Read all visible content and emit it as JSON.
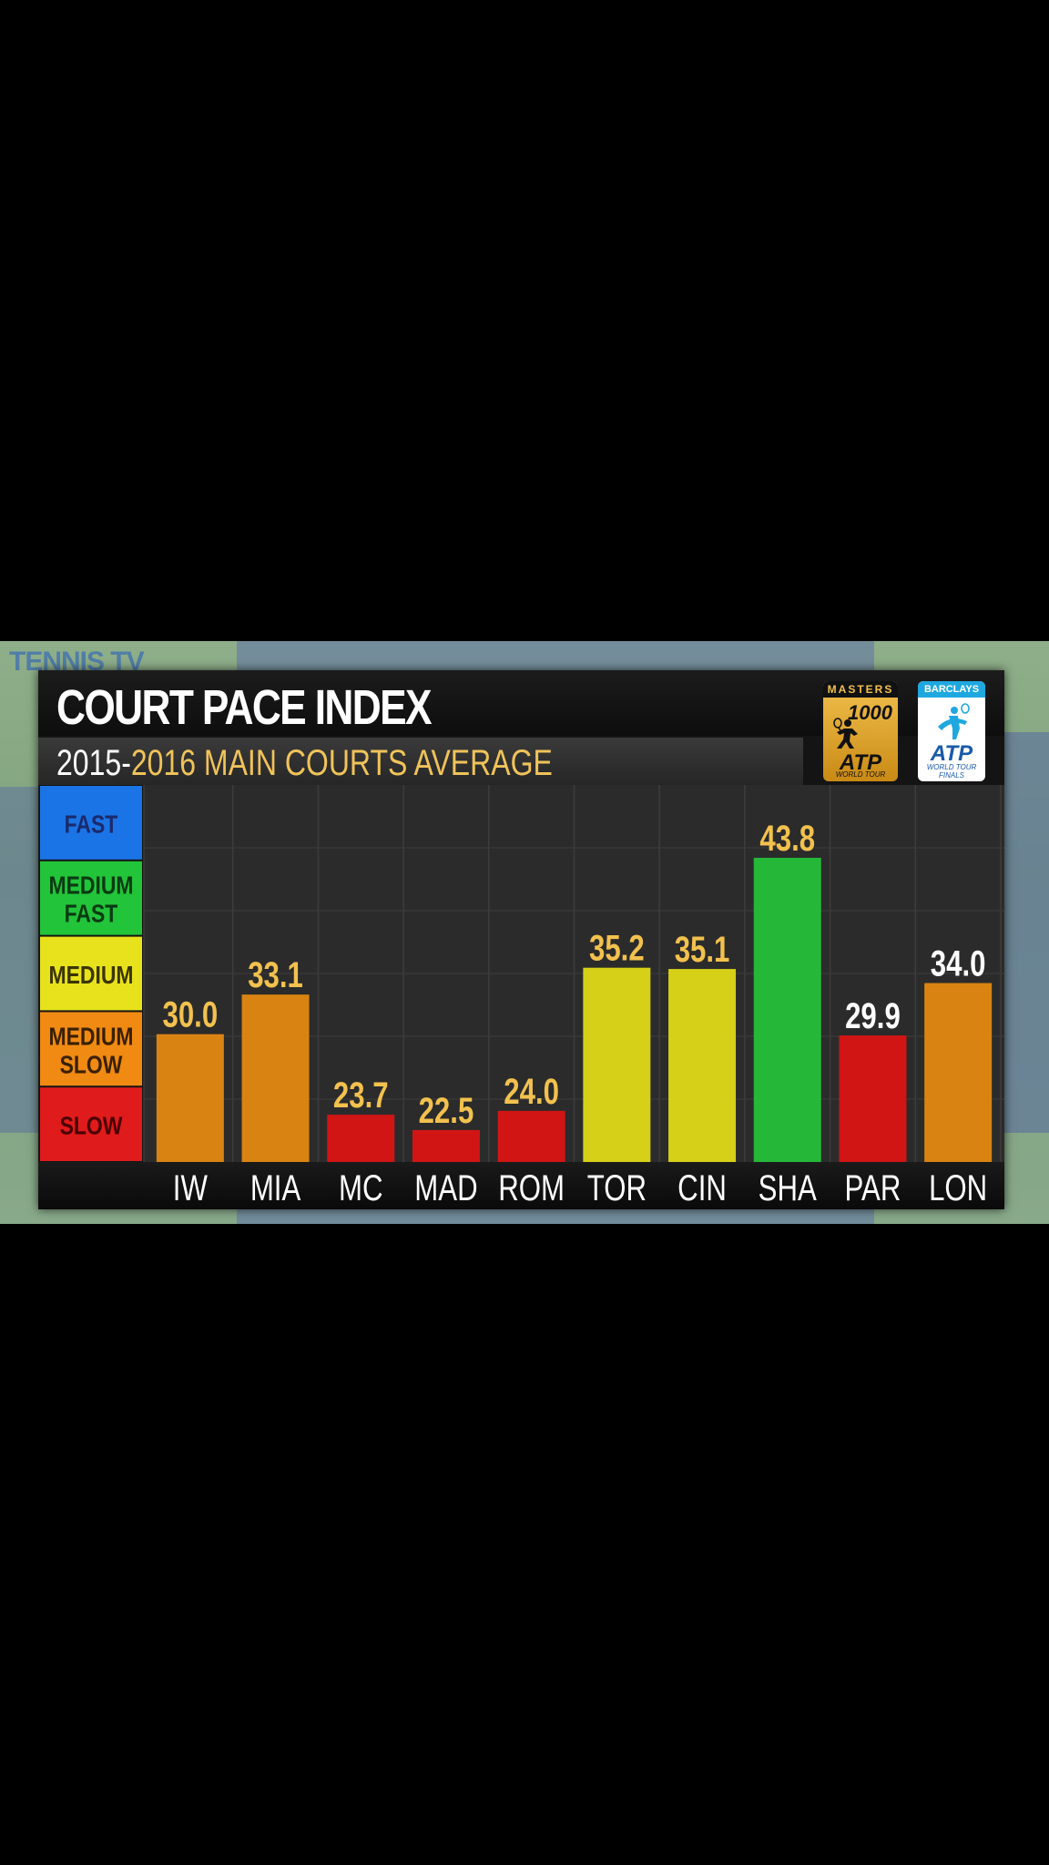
{
  "watermark": "TENNIS TV",
  "title": "COURT PACE INDEX",
  "subtitle_years_start": "2015-",
  "subtitle_rest": "2016 MAIN COURTS AVERAGE",
  "logos": {
    "masters": {
      "band": "MASTERS",
      "number": "1000",
      "brand": "ATP",
      "tagline": "WORLD TOUR"
    },
    "finals": {
      "band": "BARCLAYS",
      "brand": "ATP",
      "tagline_1": "WORLD TOUR",
      "tagline_2": "FINALS"
    }
  },
  "pace_bands": [
    {
      "lines": [
        "FAST"
      ],
      "color": "#1a74e6",
      "text_color": "#1b2a6b"
    },
    {
      "lines": [
        "MEDIUM",
        "FAST"
      ],
      "color": "#22c43a",
      "text_color": "#0a3a12"
    },
    {
      "lines": [
        "MEDIUM"
      ],
      "color": "#e8e21c",
      "text_color": "#3a3500"
    },
    {
      "lines": [
        "MEDIUM",
        "SLOW"
      ],
      "color": "#f08a12",
      "text_color": "#3a2000"
    },
    {
      "lines": [
        "SLOW"
      ],
      "color": "#e01b1b",
      "text_color": "#4a0000"
    }
  ],
  "chart_data": {
    "type": "bar",
    "title": "COURT PACE INDEX",
    "subtitle": "2015-2016 MAIN COURTS AVERAGE",
    "categories": [
      "IW",
      "MIA",
      "MC",
      "MAD",
      "ROM",
      "TOR",
      "CIN",
      "SHA",
      "PAR",
      "LON"
    ],
    "values": [
      30.0,
      33.1,
      23.7,
      22.5,
      24.0,
      35.2,
      35.1,
      43.8,
      29.9,
      34.0
    ],
    "value_labels": [
      "30.0",
      "33.1",
      "23.7",
      "22.5",
      "24.0",
      "35.2",
      "35.1",
      "43.8",
      "29.9",
      "34.0"
    ],
    "bar_colors": [
      "#d98412",
      "#d98412",
      "#d11515",
      "#d11515",
      "#d11515",
      "#d6d018",
      "#d6d018",
      "#25b838",
      "#d11515",
      "#d98412"
    ],
    "label_colors": [
      "#f2c14e",
      "#f2c14e",
      "#f2c14e",
      "#f2c14e",
      "#f2c14e",
      "#f2c14e",
      "#f2c14e",
      "#f2c14e",
      "#ffffff",
      "#ffffff"
    ],
    "ylim": [
      20,
      49.5
    ],
    "grid": true,
    "xlabel": "",
    "ylabel": ""
  }
}
